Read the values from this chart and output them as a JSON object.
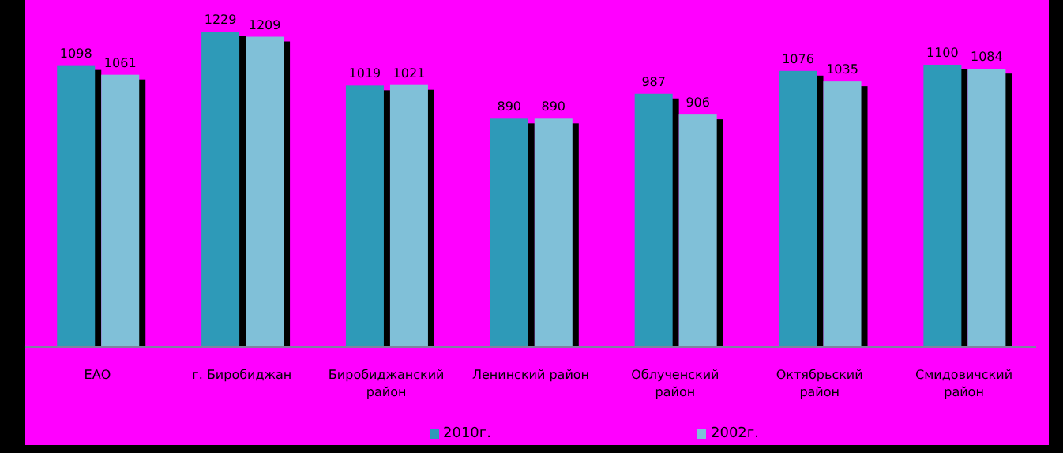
{
  "chart_data": {
    "type": "bar",
    "categories": [
      "ЕАО",
      "г. Биробиджан",
      "Биробиджанский район",
      "Ленинский район",
      "Облученский район",
      "Октябрьский район",
      "Смидовичский район"
    ],
    "series": [
      {
        "name": "2010г.",
        "color": "#2e9ab8",
        "values": [
          1098,
          1229,
          1019,
          890,
          987,
          1076,
          1100
        ]
      },
      {
        "name": "2002г.",
        "color": "#80c0d8",
        "values": [
          1061,
          1209,
          1021,
          890,
          906,
          1035,
          1084
        ]
      }
    ],
    "tick_labels": "x",
    "data_labels": true,
    "legend": "bottom",
    "grid": false
  }
}
